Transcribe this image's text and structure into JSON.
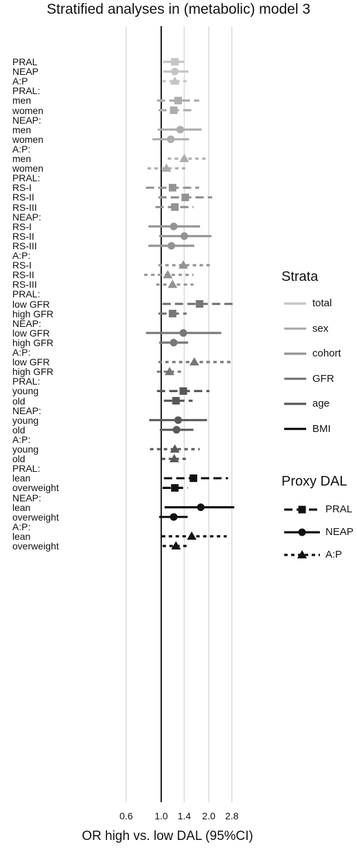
{
  "title": "Stratified analyses in (metabolic) model 3",
  "chart_data": {
    "type": "forest",
    "scale": "log",
    "xlabel": "OR high vs. low DAL (95%CI)",
    "xticks": [
      "0.6",
      "1.0",
      "1.4",
      "2.0",
      "2.8"
    ],
    "xtick_values": [
      0.6,
      1.0,
      1.4,
      2.0,
      2.8
    ],
    "xlim": [
      0.45,
      3.5
    ],
    "reference_line": 1.0,
    "grid": true,
    "legend_strata": {
      "title": "Strata",
      "items": [
        {
          "label": "total",
          "color": "#c4c4c4"
        },
        {
          "label": "sex",
          "color": "#adadad"
        },
        {
          "label": "cohort",
          "color": "#939393"
        },
        {
          "label": "GFR",
          "color": "#777777"
        },
        {
          "label": "age",
          "color": "#595959"
        },
        {
          "label": "BMI",
          "color": "#111111"
        }
      ]
    },
    "legend_proxy": {
      "title": "Proxy DAL",
      "items": [
        {
          "label": "PRAL",
          "shape": "square",
          "dash": "dashed"
        },
        {
          "label": "NEAP",
          "shape": "circle",
          "dash": "solid"
        },
        {
          "label": "A:P",
          "shape": "triangle",
          "dash": "dotted"
        }
      ]
    },
    "rows": [
      {
        "label": "PRAL",
        "stratum": "total",
        "proxy": "PRAL",
        "or": 1.22,
        "lo": 1.03,
        "hi": 1.48
      },
      {
        "label": "NEAP",
        "stratum": "total",
        "proxy": "NEAP",
        "or": 1.22,
        "lo": 1.03,
        "hi": 1.49
      },
      {
        "label": "A:P",
        "stratum": "total",
        "proxy": "A:P",
        "or": 1.22,
        "lo": 1.02,
        "hi": 1.46
      },
      {
        "label": "PRAL:"
      },
      {
        "label": "men",
        "stratum": "sex",
        "proxy": "PRAL",
        "or": 1.28,
        "lo": 0.94,
        "hi": 1.74
      },
      {
        "label": "women",
        "stratum": "sex",
        "proxy": "PRAL",
        "or": 1.2,
        "lo": 0.96,
        "hi": 1.55
      },
      {
        "label": "NEAP:"
      },
      {
        "label": "men",
        "stratum": "sex",
        "proxy": "NEAP",
        "or": 1.32,
        "lo": 0.95,
        "hi": 1.8
      },
      {
        "label": "women",
        "stratum": "sex",
        "proxy": "NEAP",
        "or": 1.15,
        "lo": 0.88,
        "hi": 1.5
      },
      {
        "label": "A:P:"
      },
      {
        "label": "men",
        "stratum": "sex",
        "proxy": "A:P",
        "or": 1.4,
        "lo": 1.1,
        "hi": 2.0
      },
      {
        "label": "women",
        "stratum": "sex",
        "proxy": "A:P",
        "or": 1.08,
        "lo": 0.82,
        "hi": 1.42
      },
      {
        "label": "PRAL:"
      },
      {
        "label": "RS-I",
        "stratum": "cohort",
        "proxy": "PRAL",
        "or": 1.18,
        "lo": 0.8,
        "hi": 1.74
      },
      {
        "label": "RS-II",
        "stratum": "cohort",
        "proxy": "PRAL",
        "or": 1.42,
        "lo": 0.96,
        "hi": 2.1
      },
      {
        "label": "RS-III",
        "stratum": "cohort",
        "proxy": "PRAL",
        "or": 1.22,
        "lo": 0.92,
        "hi": 1.6
      },
      {
        "label": "NEAP:"
      },
      {
        "label": "RS-I",
        "stratum": "cohort",
        "proxy": "NEAP",
        "or": 1.2,
        "lo": 0.83,
        "hi": 1.76
      },
      {
        "label": "RS-II",
        "stratum": "cohort",
        "proxy": "NEAP",
        "or": 1.4,
        "lo": 0.97,
        "hi": 2.08
      },
      {
        "label": "RS-III",
        "stratum": "cohort",
        "proxy": "NEAP",
        "or": 1.16,
        "lo": 0.83,
        "hi": 1.62
      },
      {
        "label": "A:P:"
      },
      {
        "label": "RS-I",
        "stratum": "cohort",
        "proxy": "A:P",
        "or": 1.38,
        "lo": 0.96,
        "hi": 2.06
      },
      {
        "label": "RS-II",
        "stratum": "cohort",
        "proxy": "A:P",
        "or": 1.1,
        "lo": 0.78,
        "hi": 1.6
      },
      {
        "label": "RS-III",
        "stratum": "cohort",
        "proxy": "A:P",
        "or": 1.18,
        "lo": 0.93,
        "hi": 1.6
      },
      {
        "label": "PRAL:"
      },
      {
        "label": "low GFR",
        "stratum": "GFR",
        "proxy": "PRAL",
        "or": 1.75,
        "lo": 1.02,
        "hi": 2.95
      },
      {
        "label": "high GFR",
        "stratum": "GFR",
        "proxy": "PRAL",
        "or": 1.18,
        "lo": 0.96,
        "hi": 1.45
      },
      {
        "label": "NEAP:"
      },
      {
        "label": "low GFR",
        "stratum": "GFR",
        "proxy": "NEAP",
        "or": 1.38,
        "lo": 0.8,
        "hi": 2.4
      },
      {
        "label": "high GFR",
        "stratum": "GFR",
        "proxy": "NEAP",
        "or": 1.2,
        "lo": 0.97,
        "hi": 1.48
      },
      {
        "label": "A:P:"
      },
      {
        "label": "low GFR",
        "stratum": "GFR",
        "proxy": "A:P",
        "or": 1.62,
        "lo": 0.96,
        "hi": 2.75
      },
      {
        "label": "high GFR",
        "stratum": "GFR",
        "proxy": "A:P",
        "or": 1.13,
        "lo": 0.94,
        "hi": 1.35
      },
      {
        "label": "PRAL:"
      },
      {
        "label": "young",
        "stratum": "age",
        "proxy": "PRAL",
        "or": 1.38,
        "lo": 0.94,
        "hi": 2.02
      },
      {
        "label": "old",
        "stratum": "age",
        "proxy": "PRAL",
        "or": 1.24,
        "lo": 1.04,
        "hi": 1.58
      },
      {
        "label": "NEAP:"
      },
      {
        "label": "young",
        "stratum": "age",
        "proxy": "NEAP",
        "or": 1.28,
        "lo": 0.84,
        "hi": 1.95
      },
      {
        "label": "old",
        "stratum": "age",
        "proxy": "NEAP",
        "or": 1.25,
        "lo": 0.98,
        "hi": 1.6
      },
      {
        "label": "A:P:"
      },
      {
        "label": "young",
        "stratum": "age",
        "proxy": "A:P",
        "or": 1.22,
        "lo": 0.85,
        "hi": 1.75
      },
      {
        "label": "old",
        "stratum": "age",
        "proxy": "A:P",
        "or": 1.21,
        "lo": 1.01,
        "hi": 1.45
      },
      {
        "label": "PRAL:"
      },
      {
        "label": "lean",
        "stratum": "BMI",
        "proxy": "PRAL",
        "or": 1.6,
        "lo": 1.04,
        "hi": 2.65
      },
      {
        "label": "overweight",
        "stratum": "BMI",
        "proxy": "PRAL",
        "or": 1.22,
        "lo": 1.02,
        "hi": 1.47
      },
      {
        "label": "NEAP:"
      },
      {
        "label": "lean",
        "stratum": "BMI",
        "proxy": "NEAP",
        "or": 1.78,
        "lo": 1.05,
        "hi": 2.9
      },
      {
        "label": "overweight",
        "stratum": "BMI",
        "proxy": "NEAP",
        "or": 1.2,
        "lo": 0.97,
        "hi": 1.47
      },
      {
        "label": "A:P:"
      },
      {
        "label": "lean",
        "stratum": "BMI",
        "proxy": "A:P",
        "or": 1.56,
        "lo": 1.01,
        "hi": 2.6
      },
      {
        "label": "overweight",
        "stratum": "BMI",
        "proxy": "A:P",
        "or": 1.24,
        "lo": 1.02,
        "hi": 1.5
      }
    ]
  }
}
